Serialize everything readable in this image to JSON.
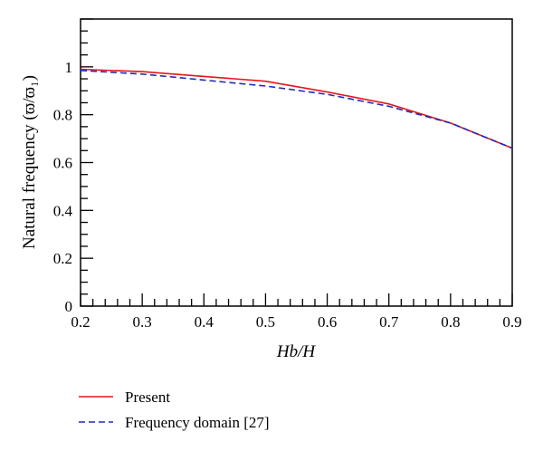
{
  "chart_data": {
    "type": "line",
    "xlabel": "Hb/H",
    "ylabel": "Natural frequency (ϖ/ϖ₁)",
    "xlim": [
      0.2,
      0.9
    ],
    "ylim": [
      0,
      1.2
    ],
    "x_ticks": [
      "0.2",
      "0.3",
      "0.4",
      "0.5",
      "0.6",
      "0.7",
      "0.8",
      "0.9"
    ],
    "y_ticks": [
      "0",
      "0.2",
      "0.4",
      "0.6",
      "0.8",
      "1"
    ],
    "grid": false,
    "legend_position": "bottom-left, below plot",
    "series": [
      {
        "name": "Present",
        "color": "#e8141b",
        "style": "solid",
        "x": [
          0.2,
          0.3,
          0.4,
          0.5,
          0.6,
          0.7,
          0.8,
          0.9
        ],
        "y": [
          0.99,
          0.98,
          0.96,
          0.94,
          0.895,
          0.845,
          0.765,
          0.66
        ]
      },
      {
        "name": "Frequency domain [27]",
        "color": "#1f2bb8",
        "style": "dashed",
        "x": [
          0.2,
          0.3,
          0.4,
          0.5,
          0.6,
          0.7,
          0.8,
          0.9
        ],
        "y": [
          0.985,
          0.97,
          0.945,
          0.92,
          0.885,
          0.835,
          0.765,
          0.66
        ]
      }
    ]
  }
}
